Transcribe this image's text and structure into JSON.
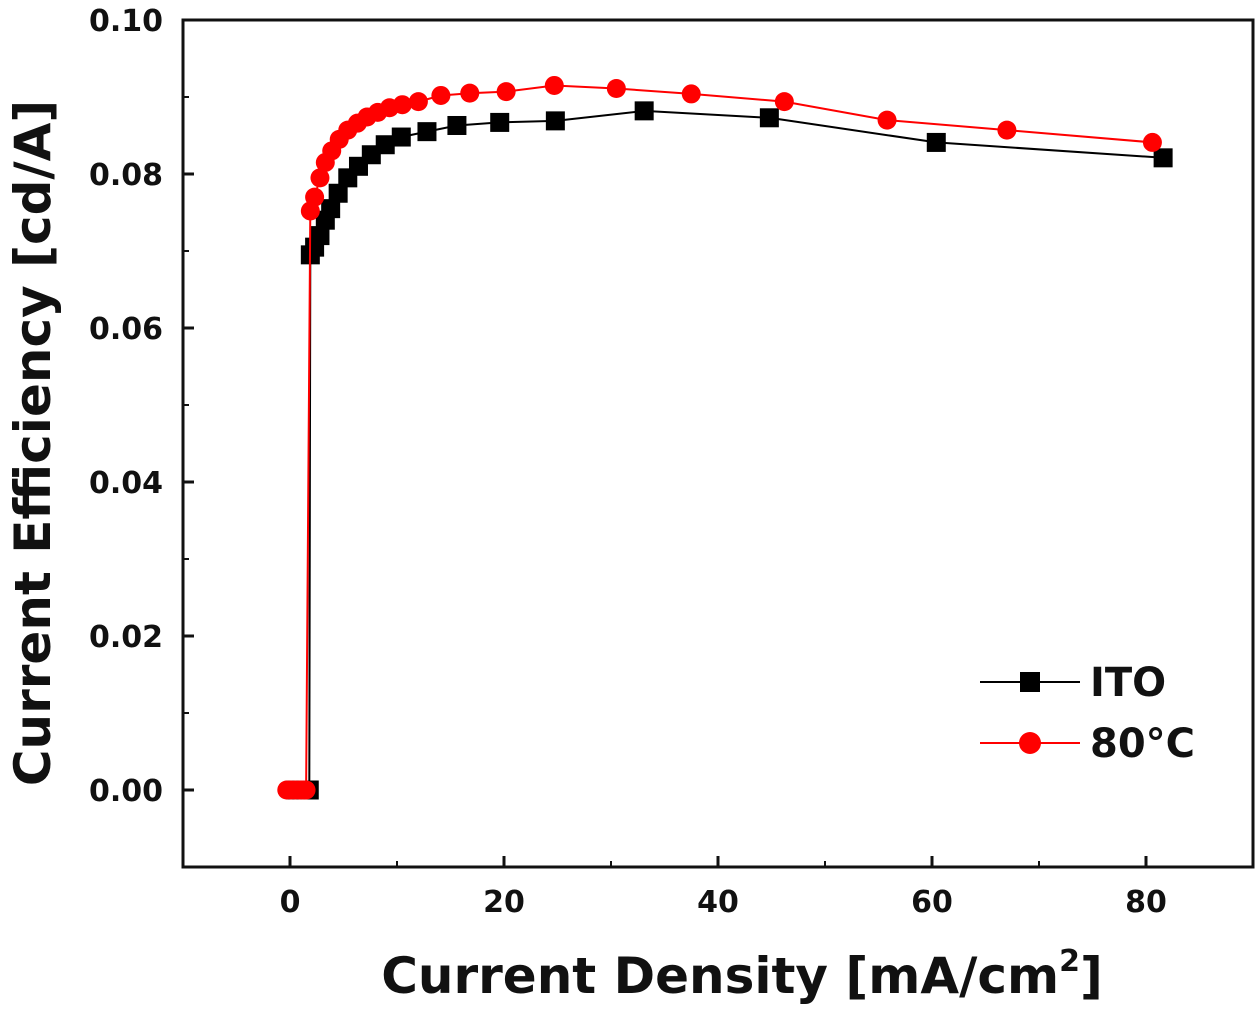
{
  "chart_data": {
    "type": "line",
    "xlabel": "Current Density [mA/cm",
    "xlabel_superscript": "2",
    "xlabel_close": "]",
    "ylabel": "Current Efficiency [cd/A]",
    "xlim": [
      -10,
      90
    ],
    "ylim": [
      -0.01,
      0.1
    ],
    "xticks": [
      0,
      20,
      40,
      60,
      80
    ],
    "xtick_labels": [
      "0",
      "20",
      "40",
      "60",
      "80"
    ],
    "yticks": [
      0.0,
      0.02,
      0.04,
      0.06,
      0.08,
      0.1
    ],
    "ytick_labels": [
      "0.00",
      "0.02",
      "0.04",
      "0.06",
      "0.08",
      "0.10"
    ],
    "legend": {
      "placement": "bottom-right",
      "entries": [
        "ITO",
        "80°C"
      ]
    },
    "series": [
      {
        "name": "ITO",
        "color": "#000000",
        "marker": "square",
        "x": [
          0.5,
          0.8,
          1.1,
          1.5,
          1.8,
          1.9,
          2.3,
          2.8,
          3.3,
          3.8,
          4.5,
          5.4,
          6.4,
          7.6,
          8.9,
          10.4,
          12.8,
          15.6,
          19.6,
          24.8,
          33.1,
          44.8,
          60.4,
          81.6
        ],
        "y": [
          0.0,
          0.0,
          0.0,
          0.0,
          0.0,
          0.0695,
          0.0705,
          0.072,
          0.074,
          0.0755,
          0.0775,
          0.0795,
          0.081,
          0.0825,
          0.0838,
          0.0848,
          0.0855,
          0.0863,
          0.0867,
          0.0869,
          0.0882,
          0.0873,
          0.0841,
          0.0821
        ]
      },
      {
        "name": "80°C",
        "color": "#ff0000",
        "marker": "circle",
        "x": [
          -0.3,
          0.1,
          0.5,
          0.9,
          1.2,
          1.5,
          1.9,
          2.3,
          2.8,
          3.3,
          3.9,
          4.6,
          5.4,
          6.3,
          7.2,
          8.2,
          9.3,
          10.5,
          12.0,
          14.1,
          16.8,
          20.2,
          24.7,
          30.5,
          37.5,
          46.2,
          55.8,
          67.0,
          80.6
        ],
        "y": [
          0.0,
          0.0,
          0.0,
          0.0,
          0.0,
          0.0,
          0.0752,
          0.077,
          0.0795,
          0.0815,
          0.083,
          0.0845,
          0.0857,
          0.0866,
          0.0874,
          0.088,
          0.0886,
          0.089,
          0.0894,
          0.0902,
          0.0905,
          0.0907,
          0.0915,
          0.0911,
          0.0904,
          0.0894,
          0.087,
          0.0857,
          0.0841
        ]
      }
    ]
  }
}
